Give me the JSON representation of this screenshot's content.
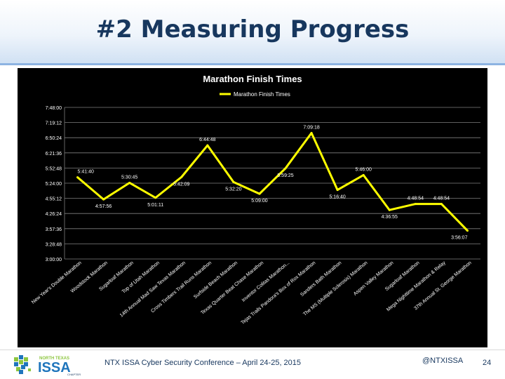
{
  "slide": {
    "title": "#2 Measuring Progress",
    "conference": "NTX ISSA Cyber Security Conference – April 24-25, 2015",
    "handle": "@NTXISSA",
    "page_number": "24"
  },
  "logo": {
    "top_text": "NORTH TEXAS",
    "main_text": "ISSA",
    "sub_text": "CHAPTER",
    "colors": {
      "green": "#8dc63f",
      "blue": "#1f75bc",
      "navy": "#17375e"
    }
  },
  "chart_data": {
    "type": "line",
    "title": "Marathon Finish Times",
    "legend": {
      "entries": [
        "Marathon Finish Times"
      ],
      "placement": "top-center"
    },
    "grid": true,
    "background": "#000000",
    "line_color": "#ffff00",
    "ylim": [
      180,
      480
    ],
    "yticks": [
      "3:00:00",
      "3:28:48",
      "3:57:36",
      "4:26:24",
      "4:55:12",
      "5:24:00",
      "5:52:48",
      "6:21:36",
      "6:50:24",
      "7:19:12",
      "7:48:00"
    ],
    "categories": [
      "New Year's Double Marathon",
      "Woodstock Marathon",
      "Sugarloaf Marathon",
      "Top of Utah Marathon",
      "14th Annual Mad Saw Texas Marathon",
      "Cross Timbers Trail Runs Marathon",
      "Surfside Beach Marathon",
      "Texas Quarter Beat Chase Marathon",
      "Inventor Colitas Marathon...",
      "Tejas Trails Pandora's Box of Rox Marathon",
      "Sanders Bath Marathon",
      "The MS (Multiple Sclerosis) Marathon",
      "Aspen Valley Marathon",
      "Sugarloaf Marathon",
      "Mega Nighttime Marathon & Relay",
      "37th Annual St. George Marathon"
    ],
    "series": [
      {
        "name": "Marathon Finish Times",
        "values": [
          341.67,
          297.93,
          330.75,
          301.18,
          342.15,
          404.8,
          332.33,
          309.0,
          359.42,
          429.3,
          316.67,
          346.0,
          276.92,
          288.9,
          288.9,
          236.12
        ],
        "labels": [
          "5:41:40",
          "4:57:56",
          "5:30:45",
          "5:01:11",
          "5:42:09",
          "6:44:48",
          "5:32:20",
          "5:09:00",
          "5:59:25",
          "7:09:18",
          "5:16:40",
          "5:46:00",
          "4:36:55",
          "4:48:54",
          "4:48:54",
          "3:56:07"
        ]
      }
    ]
  }
}
